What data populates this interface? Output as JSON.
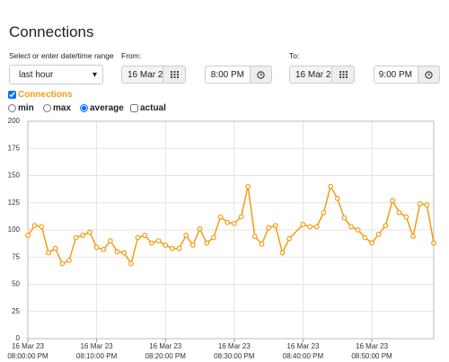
{
  "title": "Connections",
  "range_label": "Select or enter date/time range",
  "range_value": "last hour",
  "from_label": "From:",
  "from_date": "16 Mar 2",
  "from_time": "8:00 PM",
  "to_label": "To:",
  "to_date": "16 Mar 2",
  "to_time": "9:00 PM",
  "options": [
    "min",
    "max",
    "average",
    "actual"
  ],
  "chart_data": {
    "type": "line",
    "x": [
      "2023-03-16T20:00:00",
      "2023-03-16T20:01:00",
      "2023-03-16T20:02:00",
      "2023-03-16T20:03:00",
      "2023-03-16T20:04:00",
      "2023-03-16T20:05:00",
      "2023-03-16T20:06:00",
      "2023-03-16T20:07:00",
      "2023-03-16T20:08:00",
      "2023-03-16T20:09:00",
      "2023-03-16T20:10:00",
      "2023-03-16T20:11:00",
      "2023-03-16T20:12:00",
      "2023-03-16T20:13:00",
      "2023-03-16T20:14:00",
      "2023-03-16T20:15:00",
      "2023-03-16T20:16:00",
      "2023-03-16T20:17:00",
      "2023-03-16T20:18:00",
      "2023-03-16T20:19:00",
      "2023-03-16T20:20:00",
      "2023-03-16T20:21:00",
      "2023-03-16T20:22:00",
      "2023-03-16T20:23:00",
      "2023-03-16T20:24:00",
      "2023-03-16T20:25:00",
      "2023-03-16T20:26:00",
      "2023-03-16T20:27:00",
      "2023-03-16T20:28:00",
      "2023-03-16T20:29:00",
      "2023-03-16T20:30:00",
      "2023-03-16T20:31:00",
      "2023-03-16T20:32:00",
      "2023-03-16T20:33:00",
      "2023-03-16T20:34:00",
      "2023-03-16T20:35:00",
      "2023-03-16T20:36:00",
      "2023-03-16T20:37:00",
      "2023-03-16T20:38:00",
      "2023-03-16T20:40:00",
      "2023-03-16T20:41:00",
      "2023-03-16T20:42:00",
      "2023-03-16T20:43:00",
      "2023-03-16T20:44:00",
      "2023-03-16T20:45:00",
      "2023-03-16T20:46:00",
      "2023-03-16T20:47:00",
      "2023-03-16T20:48:00",
      "2023-03-16T20:49:00",
      "2023-03-16T20:50:00",
      "2023-03-16T20:51:00",
      "2023-03-16T20:52:00",
      "2023-03-16T20:53:00",
      "2023-03-16T20:54:00",
      "2023-03-16T20:55:00",
      "2023-03-16T20:56:00",
      "2023-03-16T20:57:00",
      "2023-03-16T20:58:00",
      "2023-03-16T20:59:00"
    ],
    "series": [
      {
        "name": "Connections",
        "color": "#f39c12",
        "values": [
          95,
          104,
          103,
          79,
          83,
          69,
          72,
          93,
          95,
          98,
          84,
          82,
          90,
          80,
          79,
          69,
          93,
          95,
          88,
          90,
          86,
          83,
          83,
          95,
          86,
          101,
          88,
          93,
          112,
          107,
          106,
          112,
          140,
          94,
          87,
          102,
          104,
          79,
          92,
          105,
          103,
          103,
          116,
          140,
          129,
          111,
          103,
          100,
          93,
          88,
          96,
          104,
          127,
          116,
          112,
          94,
          124,
          123,
          88
        ]
      }
    ],
    "xlim": [
      "2023-03-16T20:00:00",
      "2023-03-16T20:59:00"
    ],
    "xticks": [
      {
        "value": "2023-03-16T20:00:00",
        "label": [
          "16 Mar 23",
          "08:00:00 PM"
        ]
      },
      {
        "value": "2023-03-16T20:10:00",
        "label": [
          "16 Mar 23",
          "08:10:00 PM"
        ]
      },
      {
        "value": "2023-03-16T20:20:00",
        "label": [
          "16 Mar 23",
          "08:20:00 PM"
        ]
      },
      {
        "value": "2023-03-16T20:30:00",
        "label": [
          "16 Mar 23",
          "08:30:00 PM"
        ]
      },
      {
        "value": "2023-03-16T20:40:00",
        "label": [
          "16 Mar 23",
          "08:40:00 PM"
        ]
      },
      {
        "value": "2023-03-16T20:50:00",
        "label": [
          "16 Mar 23",
          "08:50:00 PM"
        ]
      }
    ],
    "ylim": [
      0,
      200
    ],
    "yticks": [
      0,
      25,
      50,
      75,
      100,
      125,
      150,
      175,
      200
    ],
    "grid": true
  }
}
